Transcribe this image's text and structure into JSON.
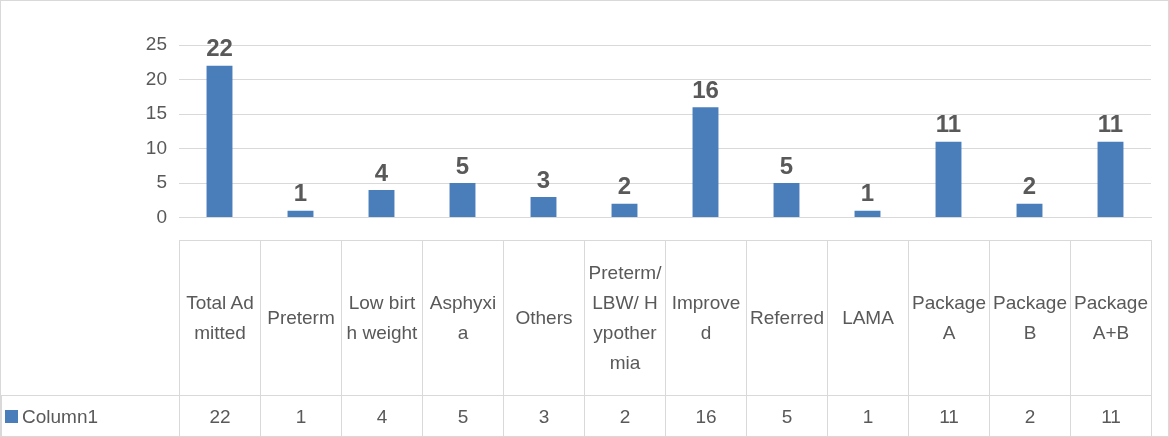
{
  "chart_data": {
    "type": "bar",
    "categories": [
      "Total Admitted",
      "Preterm",
      "Low birth weight",
      "Asphyxia",
      "Others",
      "Preterm/LBW/ Hypothermia",
      "Improved",
      "Referred",
      "LAMA",
      "Package A",
      "Package B",
      "Package A+B"
    ],
    "series": [
      {
        "name": "Column1",
        "color": "#4a7ebb",
        "values": [
          22,
          1,
          4,
          5,
          3,
          2,
          16,
          5,
          1,
          11,
          2,
          11
        ],
        "value_labels": [
          "22",
          "1",
          "4",
          "5",
          "3",
          "2",
          "16",
          "5",
          "1",
          "11",
          "2",
          "11"
        ]
      }
    ],
    "annotations": [
      "22",
      "1",
      "4",
      "5",
      "3",
      "2",
      "16",
      "5",
      "1",
      "11",
      "2",
      "11"
    ],
    "ylim": [
      0,
      25
    ],
    "yticks": [
      0,
      5,
      10,
      15,
      20,
      25
    ],
    "grid": "y",
    "data_labels": true
  }
}
